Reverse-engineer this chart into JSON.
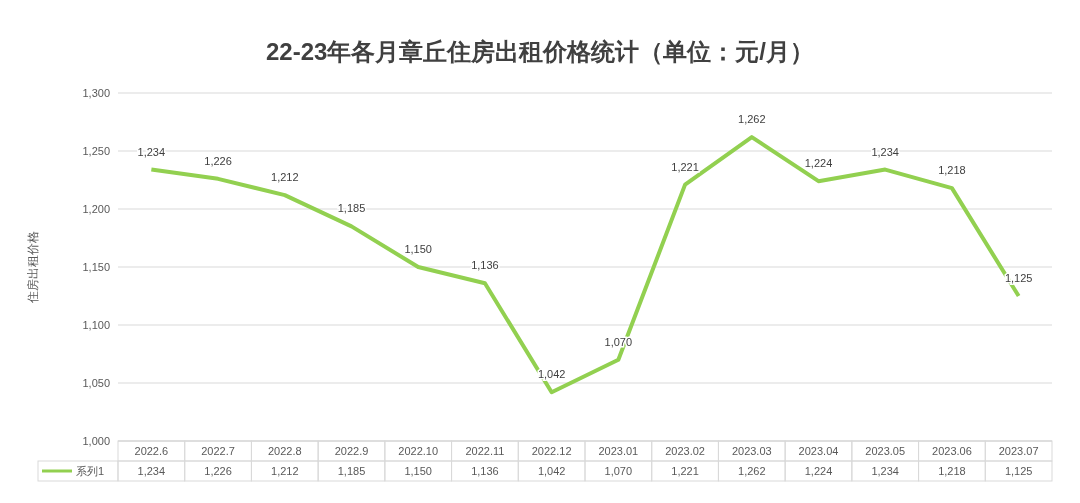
{
  "chart_data": {
    "type": "line",
    "title": "22-23年各月章丘住房出租价格统计（单位：元/月）",
    "ylabel": "住房出租价格",
    "categories": [
      "2022.6",
      "2022.7",
      "2022.8",
      "2022.9",
      "2022.10",
      "2022.11",
      "2022.12",
      "2023.01",
      "2023.02",
      "2023.03",
      "2023.04",
      "2023.05",
      "2023.06",
      "2023.07"
    ],
    "series": [
      {
        "name": "系列1",
        "color": "#92d050",
        "values": [
          1234,
          1226,
          1212,
          1185,
          1150,
          1136,
          1042,
          1070,
          1221,
          1262,
          1224,
          1234,
          1218,
          1125
        ],
        "value_labels": [
          "1,234",
          "1,226",
          "1,212",
          "1,185",
          "1,150",
          "1,136",
          "1,042",
          "1,070",
          "1,221",
          "1,262",
          "1,224",
          "1,234",
          "1,218",
          "1,125"
        ]
      }
    ],
    "ylim": [
      1000,
      1300
    ],
    "yticks": [
      {
        "value": 1000,
        "label": "1,000"
      },
      {
        "value": 1050,
        "label": "1,050"
      },
      {
        "value": 1100,
        "label": "1,100"
      },
      {
        "value": 1150,
        "label": "1,150"
      },
      {
        "value": 1200,
        "label": "1,200"
      },
      {
        "value": 1250,
        "label": "1,250"
      },
      {
        "value": 1300,
        "label": "1,300"
      }
    ],
    "grid": "y",
    "legend": "bottom left",
    "marker": "none",
    "line_style": "solid"
  }
}
